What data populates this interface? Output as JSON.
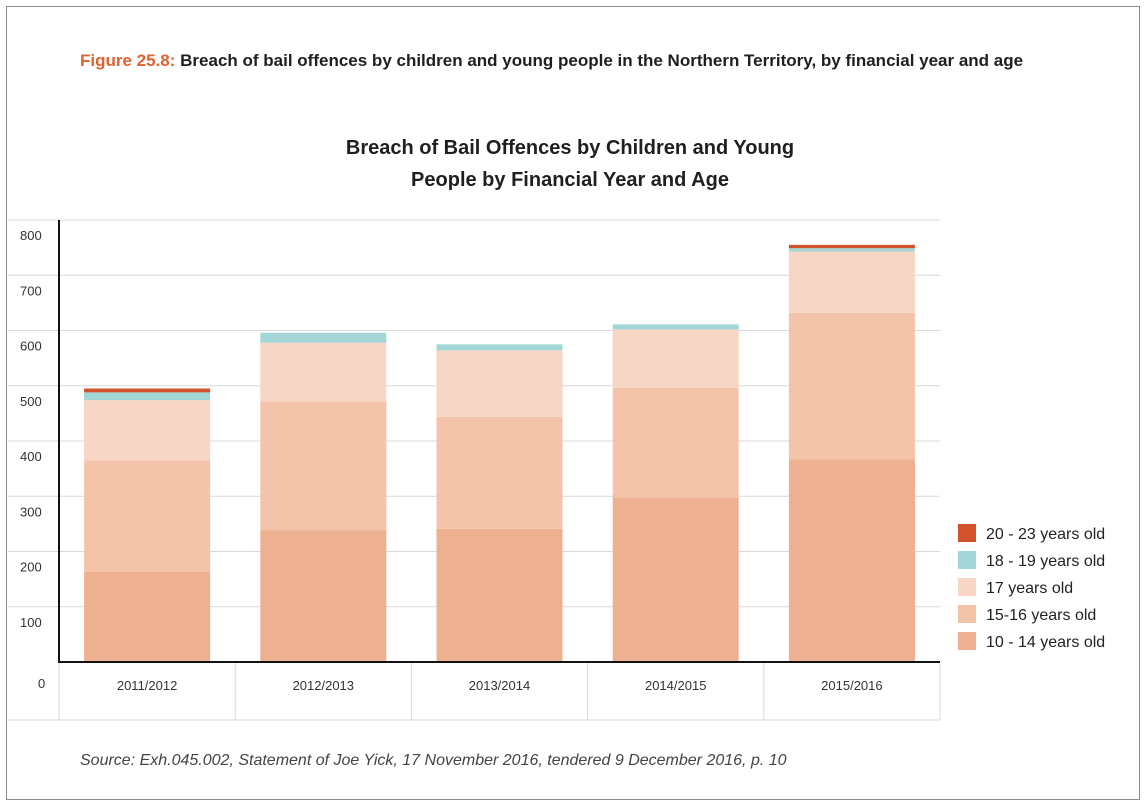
{
  "figure": {
    "number": "Figure 25.8:",
    "caption": "Breach of bail offences by children and young people in the Northern Territory, by financial year and age"
  },
  "chart_title_line1": "Breach of Bail Offences by Children and Young",
  "chart_title_line2": "People by Financial Year and Age",
  "source": "Source: Exh.045.002, Statement of Joe Yick, 17 November 2016, tendered 9 December 2016, p. 10",
  "chart_data": {
    "type": "bar",
    "stacked": true,
    "title": "Breach of Bail Offences by Children and Young People by Financial Year and Age",
    "xlabel": "",
    "ylabel": "",
    "ylim": [
      0,
      800
    ],
    "yticks": [
      0,
      100,
      200,
      300,
      400,
      500,
      600,
      700,
      800
    ],
    "grid": true,
    "legend_position": "right",
    "categories": [
      "2011/2012",
      "2012/2013",
      "2013/2014",
      "2014/2015",
      "2015/2016"
    ],
    "series": [
      {
        "name": "10 - 14 years old",
        "color": "#edb192",
        "values": [
          163,
          238,
          241,
          298,
          367
        ]
      },
      {
        "name": "15-16 years old",
        "color": "#f3c4aa",
        "values": [
          202,
          234,
          203,
          198,
          265
        ]
      },
      {
        "name": "17 years old",
        "color": "#f7d6c6",
        "values": [
          109,
          106,
          120,
          106,
          111
        ]
      },
      {
        "name": "18 - 19 years old",
        "color": "#a3d6d6",
        "values": [
          14,
          18,
          11,
          9,
          6
        ]
      },
      {
        "name": "20 - 23 years old",
        "color": "#d2522c",
        "values": [
          7,
          0,
          0,
          0,
          6
        ]
      }
    ]
  }
}
